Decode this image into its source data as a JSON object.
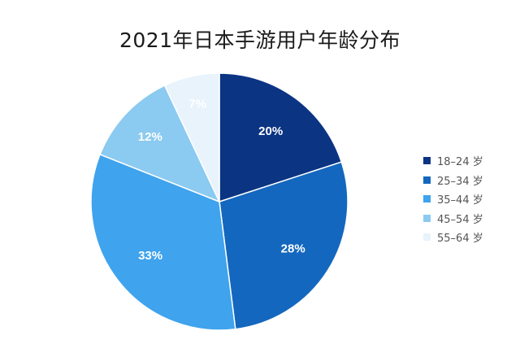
{
  "chart_data": {
    "type": "pie",
    "title": "2021年日本手游用户年龄分布",
    "categories": [
      "18–24 岁",
      "25–34 岁",
      "35–44 岁",
      "45–54 岁",
      "55–64 岁"
    ],
    "values": [
      20,
      28,
      33,
      12,
      7
    ],
    "labels": [
      "20%",
      "28%",
      "33%",
      "12%",
      "7%"
    ],
    "colors": [
      "#0b3483",
      "#1467be",
      "#3fa3ed",
      "#8bcaf1",
      "#e8f3fc"
    ],
    "legend_position": "right"
  }
}
